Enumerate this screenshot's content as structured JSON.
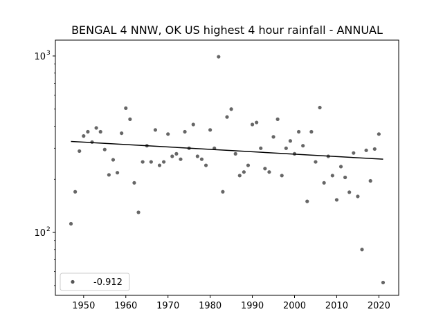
{
  "chart_data": {
    "type": "scatter",
    "title": "BENGAL 4 NNW, OK US highest 4 hour rainfall - ANNUAL",
    "xlabel": "",
    "ylabel": "",
    "yscale": "log",
    "xlim": [
      1943.3,
      2024.7
    ],
    "ylim": [
      44,
      1230
    ],
    "grid": false,
    "x_ticks": [
      1950,
      1960,
      1970,
      1980,
      1990,
      2000,
      2010,
      2020
    ],
    "x_tick_labels": [
      "1950",
      "1960",
      "1970",
      "1980",
      "1990",
      "2000",
      "2010",
      "2020"
    ],
    "y_ticks": [
      100,
      1000
    ],
    "y_tick_labels": [
      "10",
      "10"
    ],
    "y_tick_exponents": [
      "2",
      "3"
    ],
    "legend": {
      "placement": "lower-left",
      "entries": [
        {
          "label": "-0.912",
          "marker": "circle"
        }
      ]
    },
    "series": [
      {
        "name": "-0.912",
        "kind": "scatter",
        "color": "#555555",
        "x": [
          1947,
          1948,
          1949,
          1950,
          1951,
          1952,
          1953,
          1954,
          1955,
          1956,
          1957,
          1958,
          1959,
          1960,
          1961,
          1962,
          1963,
          1964,
          1965,
          1966,
          1967,
          1968,
          1969,
          1970,
          1971,
          1972,
          1973,
          1974,
          1975,
          1976,
          1977,
          1978,
          1979,
          1980,
          1981,
          1982,
          1983,
          1984,
          1985,
          1986,
          1987,
          1988,
          1989,
          1990,
          1991,
          1992,
          1993,
          1994,
          1995,
          1996,
          1997,
          1998,
          1999,
          2000,
          2001,
          2002,
          2003,
          2004,
          2005,
          2006,
          2007,
          2008,
          2009,
          2010,
          2011,
          2012,
          2013,
          2014,
          2015,
          2016,
          2017,
          2018,
          2019,
          2020,
          2021
        ],
        "y": [
          112,
          170,
          289,
          352,
          372,
          325,
          391,
          372,
          295,
          212,
          258,
          218,
          365,
          506,
          438,
          191,
          130,
          251,
          310,
          251,
          381,
          240,
          251,
          361,
          270,
          279,
          260,
          372,
          300,
          409,
          270,
          260,
          240,
          381,
          300,
          990,
          170,
          451,
          500,
          279,
          210,
          220,
          240,
          409,
          420,
          300,
          230,
          220,
          348,
          438,
          210,
          300,
          330,
          279,
          372,
          310,
          150,
          372,
          251,
          510,
          191,
          270,
          210,
          153,
          236,
          205,
          169,
          282,
          160,
          80,
          292,
          196,
          297,
          361,
          52
        ]
      },
      {
        "name": "trend",
        "kind": "line",
        "color": "#000000",
        "x": [
          1947,
          2021
        ],
        "y": [
          328,
          260
        ]
      }
    ]
  }
}
